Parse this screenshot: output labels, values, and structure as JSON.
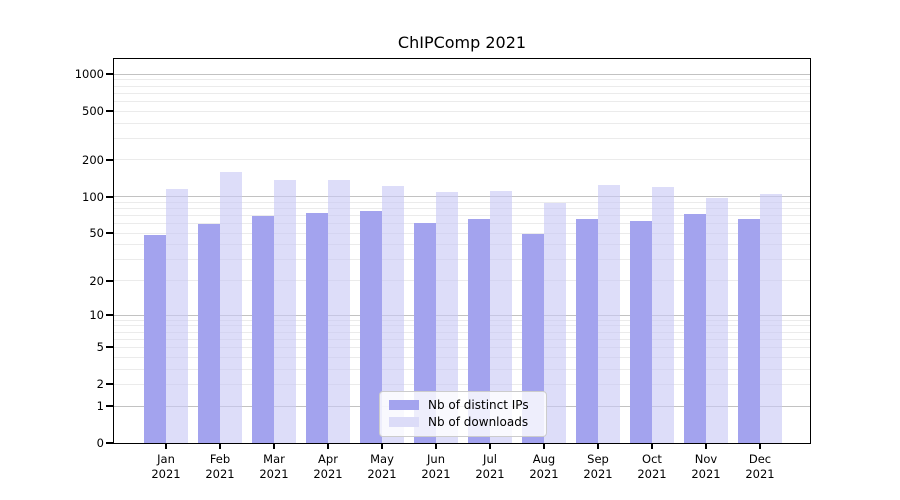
{
  "title": "ChIPComp 2021",
  "chart_data": {
    "type": "bar",
    "title": "ChIPComp 2021",
    "categories": [
      "Jan",
      "Feb",
      "Mar",
      "Apr",
      "May",
      "Jun",
      "Jul",
      "Aug",
      "Sep",
      "Oct",
      "Nov",
      "Dec"
    ],
    "x_year": "2021",
    "series": [
      {
        "name": "Nb of distinct IPs",
        "color": "#a3a3ee",
        "values": [
          48,
          60,
          70,
          74,
          76,
          61,
          65,
          49,
          66,
          63,
          72,
          66
        ]
      },
      {
        "name": "Nb of downloads",
        "color": "#dcdcf8",
        "color_rgba": "rgba(200,200,245,0.62)",
        "values": [
          115,
          158,
          138,
          138,
          123,
          109,
          111,
          89,
          125,
          121,
          98,
          105
        ]
      }
    ],
    "y_axis": {
      "scale": "log1p",
      "ticks": [
        0,
        1,
        2,
        5,
        10,
        20,
        50,
        100,
        200,
        500,
        1000
      ],
      "ylim": [
        0,
        1332
      ]
    },
    "grid": true,
    "grid_color_major": "#c2c2c2",
    "grid_color_minor": "#ebebeb",
    "legend_position": "lower center",
    "legend_labels": [
      "Nb of distinct IPs",
      "Nb of downloads"
    ]
  }
}
